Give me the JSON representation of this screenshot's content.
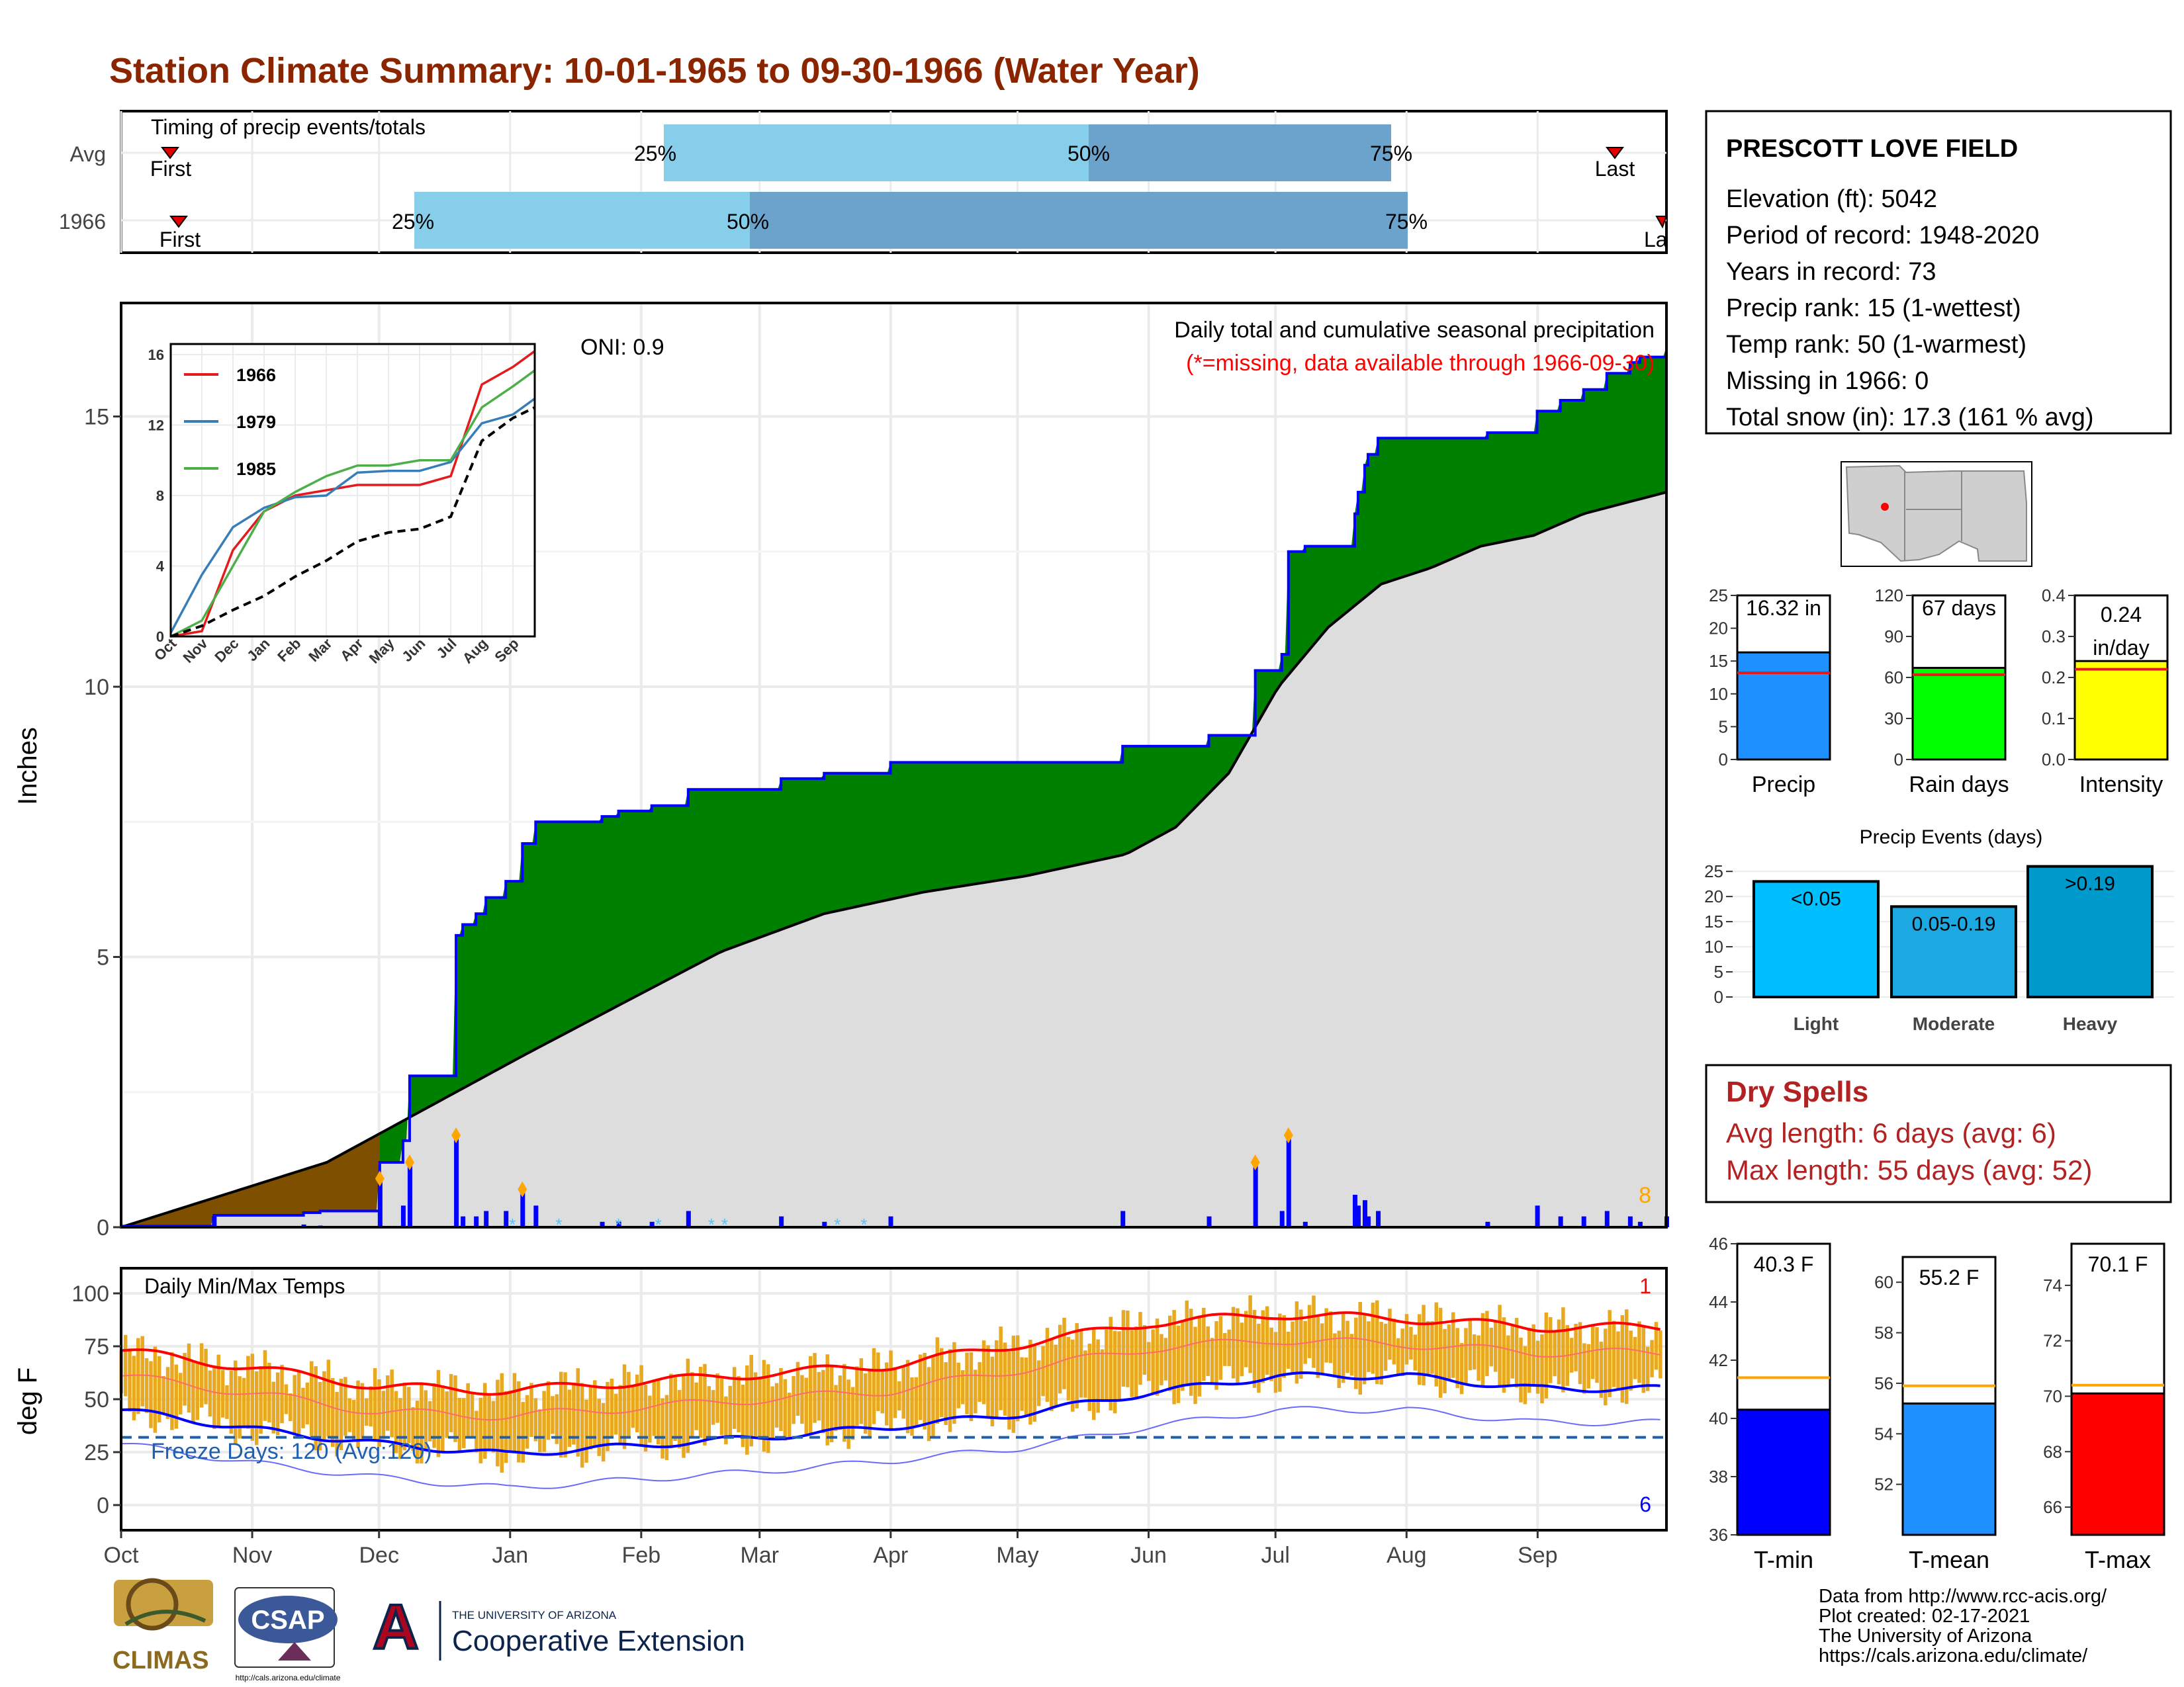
{
  "title": "Station Climate Summary: 10-01-1965 to 09-30-1966 (Water Year)",
  "colors": {
    "title": "#8B2500",
    "precip_green": "#008000",
    "precip_brown": "#7F4F00",
    "avg_grey": "#DDDDDD",
    "bar_blue": "#0000FF",
    "light_blue": "#87CEEB",
    "mid_blue": "#6BA3CC",
    "temp_bar": "#E8A820",
    "red": "#FF0000",
    "blue": "#0000FF",
    "dry_red": "#B22222"
  },
  "station": {
    "name": "PRESCOTT LOVE FIELD",
    "lines": [
      "Elevation (ft): 5042",
      "Period of record: 1948-2020",
      "Years in record: 73",
      "Precip rank: 15 (1-wettest)",
      "Temp rank: 50 (1-warmest)",
      "Missing in 1966: 0",
      "Total snow (in): 17.3 (161 % avg)"
    ]
  },
  "timing": {
    "label": "Timing of precip events/totals",
    "rows": [
      {
        "label": "Avg",
        "first": "First",
        "last": "Last",
        "p25": "25%",
        "p50": "50%",
        "p75": "75%"
      },
      {
        "label": "1966",
        "first": "First",
        "last": "La",
        "p25": "25%",
        "p50": "50%",
        "p75": "75%"
      }
    ]
  },
  "precip_panel": {
    "ylabel": "Inches",
    "yticks": [
      "0",
      "5",
      "10",
      "15"
    ],
    "header1": "Daily total and cumulative seasonal precipitation",
    "header2": "(*=missing, data available through 1966-09-30)",
    "oni": "ONI: 0.9",
    "count_label": "8"
  },
  "inset": {
    "yticks": [
      "0",
      "4",
      "8",
      "12",
      "16"
    ],
    "months": [
      "Oct",
      "Nov",
      "Dec",
      "Jan",
      "Feb",
      "Mar",
      "Apr",
      "May",
      "Jun",
      "Jul",
      "Aug",
      "Sep"
    ],
    "legend": [
      {
        "name": "1966",
        "color": "#E41A1C"
      },
      {
        "name": "1979",
        "color": "#377EB8"
      },
      {
        "name": "1985",
        "color": "#4DAF4A"
      }
    ]
  },
  "temp_panel": {
    "ylabel": "deg F",
    "yticks": [
      "0",
      "25",
      "50",
      "75",
      "100"
    ],
    "header": "Daily Min/Max Temps",
    "freeze": "Freeze Days: 120 (Avg:120)",
    "count_top": "1",
    "count_bottom": "6"
  },
  "months": [
    "Oct",
    "Nov",
    "Dec",
    "Jan",
    "Feb",
    "Mar",
    "Apr",
    "May",
    "Jun",
    "Jul",
    "Aug",
    "Sep"
  ],
  "summary_bars": [
    {
      "label": "Precip",
      "value_text": "16.32 in",
      "value": 16.32,
      "avg": 13.2,
      "max": 25,
      "ticks": [
        "0",
        "5",
        "10",
        "15",
        "20",
        "25"
      ],
      "color": "#1E90FF"
    },
    {
      "label": "Rain days",
      "value_text": "67 days",
      "value": 67,
      "avg": 62,
      "max": 120,
      "ticks": [
        "0",
        "30",
        "60",
        "90",
        "120"
      ],
      "color": "#00FF00"
    },
    {
      "label": "Intensity",
      "value_text_1": "0.24",
      "value_text_2": "in/day",
      "value": 0.24,
      "avg": 0.22,
      "max": 0.4,
      "ticks": [
        "0.0",
        "0.1",
        "0.2",
        "0.3",
        "0.4"
      ],
      "color": "#FFFF00"
    }
  ],
  "events": {
    "title": "Precip Events (days)",
    "yticks": [
      "0",
      "5",
      "10",
      "15",
      "20",
      "25"
    ],
    "bars": [
      {
        "label": "Light",
        "value_label": "<0.05",
        "value": 23,
        "color": "#00BFFF"
      },
      {
        "label": "Moderate",
        "value_label": "0.05-0.19",
        "value": 18,
        "color": "#1CA8E0"
      },
      {
        "label": "Heavy",
        "value_label": ">0.19",
        "value": 26,
        "color": "#0099CC"
      }
    ]
  },
  "dry_spells": {
    "title": "Dry Spells",
    "line1": "Avg length: 6 days (avg: 6)",
    "line2": "Max length: 55 days (avg: 52)"
  },
  "temp_bars": [
    {
      "label": "T-min",
      "value_text": "40.3 F",
      "value": 40.3,
      "avg": 41.4,
      "min": 36,
      "max": 46,
      "ticks": [
        "36",
        "38",
        "40",
        "42",
        "44",
        "46"
      ],
      "color": "#0000FF"
    },
    {
      "label": "T-mean",
      "value_text": "55.2 F",
      "value": 55.2,
      "avg": 55.9,
      "min": 50,
      "max": 61,
      "ticks": [
        "52",
        "54",
        "56",
        "58",
        "60"
      ],
      "color": "#1E90FF"
    },
    {
      "label": "T-max",
      "value_text": "70.1 F",
      "value": 70.1,
      "avg": 70.4,
      "min": 65,
      "max": 75.5,
      "ticks": [
        "66",
        "68",
        "70",
        "72",
        "74"
      ],
      "color": "#FF0000"
    }
  ],
  "footer": {
    "lines": [
      "Data from http://www.rcc-acis.org/",
      "Plot created: 02-17-2021",
      "The University of Arizona",
      "https://cals.arizona.edu/climate/"
    ]
  },
  "logos": {
    "climas": "CLIMAS",
    "csap": "CSAP",
    "csap_url": "http://cals.arizona.edu/climate",
    "ua_small": "THE UNIVERSITY OF ARIZONA",
    "coop": "Cooperative Extension"
  },
  "chart_data": [
    {
      "type": "area",
      "title": "Daily total and cumulative seasonal precipitation",
      "ylabel": "Inches",
      "ylim": [
        0,
        16.5
      ],
      "x_months": [
        "Oct",
        "Nov",
        "Dec",
        "Jan",
        "Feb",
        "Mar",
        "Apr",
        "May",
        "Jun",
        "Jul",
        "Aug",
        "Sep"
      ],
      "series": [
        {
          "name": "1966",
          "kind": "cumulative_step",
          "points": [
            [
              0,
              0.02
            ],
            [
              14,
              0.02
            ],
            [
              28,
              0.22
            ],
            [
              48,
              0.22
            ],
            [
              55,
              0.27
            ],
            [
              60,
              0.27
            ],
            [
              60,
              0.3
            ],
            [
              77,
              0.3
            ],
            [
              78,
              1.2
            ],
            [
              85,
              1.6
            ],
            [
              87,
              2.8
            ],
            [
              100,
              2.8
            ],
            [
              101,
              5.4
            ],
            [
              103,
              5.6
            ],
            [
              107,
              5.8
            ],
            [
              110,
              6.1
            ],
            [
              116,
              6.4
            ],
            [
              121,
              7.1
            ],
            [
              125,
              7.5
            ],
            [
              145,
              7.6
            ],
            [
              150,
              7.7
            ],
            [
              160,
              7.8
            ],
            [
              171,
              8.1
            ],
            [
              193,
              8.1
            ],
            [
              199,
              8.3
            ],
            [
              212,
              8.4
            ],
            [
              220,
              8.4
            ],
            [
              232,
              8.6
            ],
            [
              300,
              8.6
            ],
            [
              302,
              8.9
            ],
            [
              325,
              8.9
            ],
            [
              328,
              9.1
            ],
            [
              340,
              9.1
            ],
            [
              342,
              10.3
            ],
            [
              348,
              10.3
            ],
            [
              350,
              10.6
            ],
            [
              352,
              12.5
            ],
            [
              355,
              12.5
            ],
            [
              357,
              12.6
            ],
            [
              369,
              12.6
            ],
            [
              372,
              13.2
            ],
            [
              373,
              13.6
            ],
            [
              375,
              14.1
            ],
            [
              376,
              14.3
            ],
            [
              379,
              14.6
            ],
            [
              398,
              14.6
            ],
            [
              412,
              14.7
            ],
            [
              424,
              14.7
            ],
            [
              427,
              15.1
            ],
            [
              434,
              15.3
            ],
            [
              441,
              15.5
            ],
            [
              448,
              15.8
            ],
            [
              455,
              16.0
            ],
            [
              458,
              16.1
            ],
            [
              466,
              16.3
            ]
          ]
        },
        {
          "name": "Avg",
          "kind": "cumulative",
          "points": [
            [
              0,
              0
            ],
            [
              62,
              1.2
            ],
            [
              92,
              2.2
            ],
            [
              122,
              3.2
            ],
            [
              153,
              4.2
            ],
            [
              181,
              5.1
            ],
            [
              212,
              5.8
            ],
            [
              242,
              6.2
            ],
            [
              273,
              6.5
            ],
            [
              303,
              6.9
            ],
            [
              318,
              7.4
            ],
            [
              334,
              8.4
            ],
            [
              349,
              10.0
            ],
            [
              364,
              11.1
            ],
            [
              380,
              11.9
            ],
            [
              395,
              12.2
            ],
            [
              410,
              12.6
            ],
            [
              426,
              12.8
            ],
            [
              441,
              13.2
            ],
            [
              466,
              13.6
            ]
          ]
        }
      ],
      "annotations": [
        "ONI: 0.9",
        "8"
      ]
    },
    {
      "type": "line",
      "title": "",
      "xlabel": "",
      "ylim": [
        0,
        16.5
      ],
      "x": [
        "Oct",
        "Nov",
        "Dec",
        "Jan",
        "Feb",
        "Mar",
        "Apr",
        "May",
        "Jun",
        "Jul",
        "Aug",
        "Sep"
      ],
      "series": [
        {
          "name": "1966",
          "values": [
            0.0,
            0.3,
            4.9,
            7.1,
            8.0,
            8.3,
            8.6,
            8.6,
            8.6,
            9.1,
            14.3,
            15.3
          ]
        },
        {
          "name": "1979",
          "values": [
            0.2,
            3.5,
            6.2,
            7.3,
            7.9,
            8.0,
            9.3,
            9.4,
            9.4,
            9.9,
            12.1,
            12.6
          ]
        },
        {
          "name": "1985",
          "values": [
            0.0,
            0.9,
            4.0,
            7.1,
            8.2,
            9.1,
            9.7,
            9.7,
            10.0,
            10.0,
            13.0,
            14.2
          ]
        },
        {
          "values": [
            0.0,
            0.6,
            1.5,
            2.3,
            3.4,
            4.3,
            5.4,
            5.9,
            6.1,
            6.8,
            11.1,
            12.4
          ]
        }
      ]
    },
    {
      "type": "bar",
      "title": "Daily Min/Max Temps",
      "ylabel": "deg F",
      "ylim": [
        -10,
        108
      ],
      "x": [
        "Oct",
        "Nov",
        "Dec",
        "Jan",
        "Feb",
        "Mar",
        "Apr",
        "May",
        "Jun",
        "Jul",
        "Aug",
        "Sep"
      ],
      "series": [
        {
          "values": [
            73,
            65,
            56,
            54,
            58,
            62,
            66,
            76,
            86,
            90,
            88,
            84
          ]
        },
        {
          "values": [
            45,
            36,
            29,
            24,
            28,
            32,
            37,
            43,
            53,
            61,
            61,
            55
          ]
        }
      ],
      "annotations": [
        "Freeze Days: 120 (Avg:120)",
        "1",
        "6"
      ]
    },
    {
      "type": "bar",
      "categories": [
        "Precip",
        "Rain days",
        "Intensity"
      ],
      "values": [
        16.32,
        67,
        0.24
      ]
    },
    {
      "type": "bar",
      "title": "Precip Events (days)",
      "categories": [
        "Light",
        "Moderate",
        "Heavy"
      ],
      "series": [
        {
          "values": [
            23,
            18,
            26
          ]
        }
      ],
      "ylim": [
        0,
        27
      ]
    },
    {
      "type": "bar",
      "categories": [
        "T-min",
        "T-mean",
        "T-max"
      ],
      "values": [
        40.3,
        55.2,
        70.1
      ]
    }
  ]
}
